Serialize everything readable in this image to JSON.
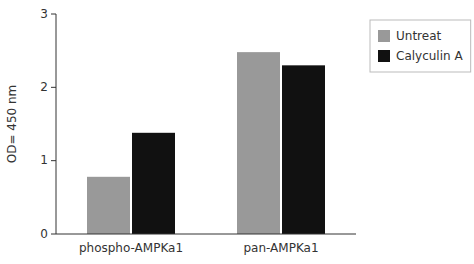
{
  "chart_data": {
    "type": "bar",
    "categories": [
      "phospho-AMPKa1",
      "pan-AMPKa1"
    ],
    "series": [
      {
        "name": "Untreat",
        "color": "#999999",
        "values": [
          0.78,
          2.48
        ]
      },
      {
        "name": "Calyculin A",
        "color": "#111111",
        "values": [
          1.38,
          2.3
        ]
      }
    ],
    "ylabel": "OD= 450 nm",
    "ylim": [
      0,
      3
    ],
    "yticks": [
      0,
      1,
      2,
      3
    ],
    "grid": false,
    "legend": "right"
  }
}
